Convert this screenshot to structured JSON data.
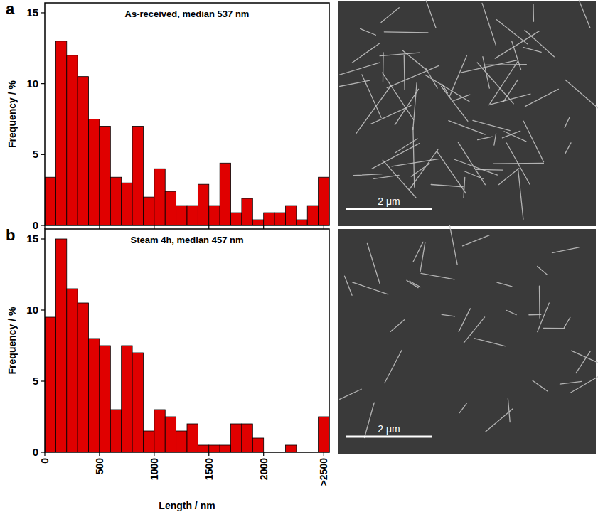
{
  "chart_data": [
    {
      "type": "histogram",
      "label": "a",
      "title": "As-received, median 537 nm",
      "y_label": "Frequency / %",
      "bins": [
        0,
        100,
        200,
        300,
        400,
        500,
        600,
        700,
        800,
        900,
        1000,
        1100,
        1200,
        1300,
        1400,
        1500,
        1600,
        1700,
        1800,
        1900,
        2000,
        2100,
        2200,
        2300,
        2400,
        2500,
        2600
      ],
      "values": [
        3.4,
        13,
        12,
        10.5,
        7.5,
        7,
        3.4,
        3,
        7,
        2,
        4,
        2.4,
        1.4,
        1.4,
        2.9,
        1.4,
        4.4,
        0.9,
        1.9,
        0.4,
        0.9,
        0.9,
        1.4,
        0.4,
        1.4,
        3.4
      ],
      "color": "#e00000",
      "xlim": [
        0,
        2600
      ],
      "xticks": [
        0,
        500,
        1000,
        1500,
        2000,
        {
          "value": 2550,
          "label": ">2500"
        }
      ],
      "ylim": [
        0,
        15.7
      ],
      "yticks": [
        0,
        5,
        10,
        15
      ],
      "tick_labels": "y",
      "grid": false,
      "scale_bar": "2 μm"
    },
    {
      "type": "histogram",
      "label": "b",
      "title": "Steam 4h, median 457 nm",
      "x_label": "Length / nm",
      "y_label": "Frequency / %",
      "bins": [
        0,
        100,
        200,
        300,
        400,
        500,
        600,
        700,
        800,
        900,
        1000,
        1100,
        1200,
        1300,
        1400,
        1500,
        1600,
        1700,
        1800,
        1900,
        2000,
        2100,
        2200,
        2300,
        2400,
        2500,
        2600
      ],
      "values": [
        9.5,
        15,
        11.5,
        10.5,
        8,
        7.5,
        3,
        7.5,
        7,
        1.5,
        3,
        2.5,
        1.5,
        2,
        0.5,
        0.5,
        0.5,
        2,
        2,
        1,
        0,
        0,
        0.5,
        0,
        0,
        2.5
      ],
      "color": "#e00000",
      "xlim": [
        0,
        2600
      ],
      "xticks": [
        0,
        500,
        1000,
        1500,
        2000,
        {
          "value": 2550,
          "label": ">2500"
        }
      ],
      "ylim": [
        0,
        15.7
      ],
      "yticks": [
        0,
        5,
        10,
        15
      ],
      "grid": false,
      "scale_bar": "2 μm"
    }
  ]
}
